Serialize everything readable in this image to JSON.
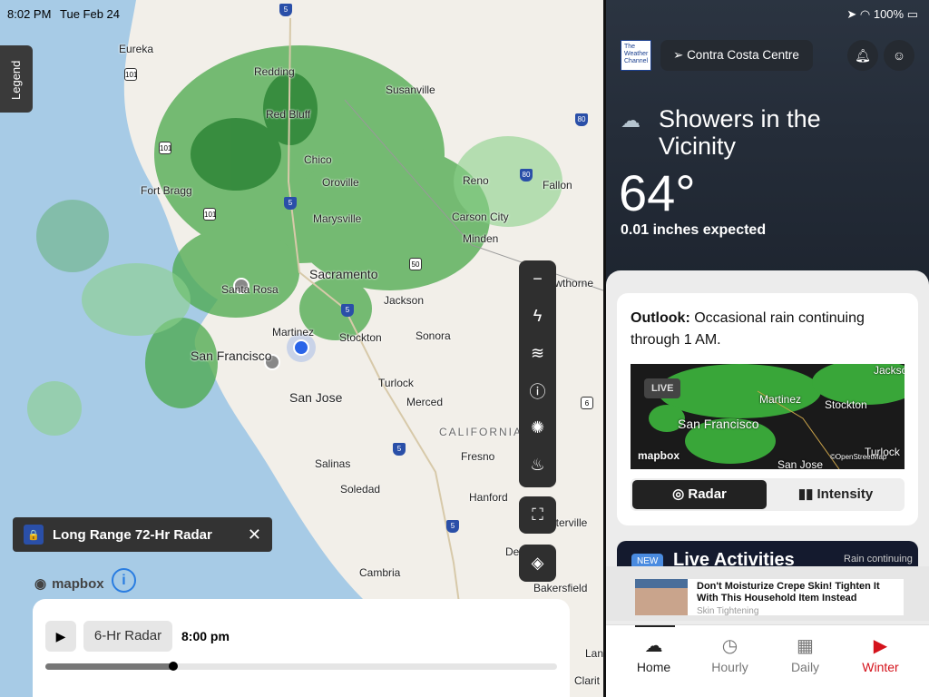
{
  "status_bar": {
    "time": "8:02 PM",
    "date": "Tue Feb 24",
    "battery": "100%"
  },
  "map": {
    "legend_label": "Legend",
    "cities": [
      {
        "name": "Eureka"
      },
      {
        "name": "Redding"
      },
      {
        "name": "Susanville"
      },
      {
        "name": "Red Bluff"
      },
      {
        "name": "Chico"
      },
      {
        "name": "Oroville"
      },
      {
        "name": "Fort Bragg"
      },
      {
        "name": "Marysville"
      },
      {
        "name": "Reno"
      },
      {
        "name": "Fallon"
      },
      {
        "name": "Carson City"
      },
      {
        "name": "Minden"
      },
      {
        "name": "Sacramento"
      },
      {
        "name": "Santa Rosa"
      },
      {
        "name": "Hawthorne"
      },
      {
        "name": "Jackson"
      },
      {
        "name": "Martinez"
      },
      {
        "name": "Stockton"
      },
      {
        "name": "Sonora"
      },
      {
        "name": "San Francisco"
      },
      {
        "name": "Turlock"
      },
      {
        "name": "San Jose"
      },
      {
        "name": "Merced"
      },
      {
        "name": "CALIFORNIA"
      },
      {
        "name": "Fresno"
      },
      {
        "name": "Salinas"
      },
      {
        "name": "Soledad"
      },
      {
        "name": "Hanford"
      },
      {
        "name": "Porterville"
      },
      {
        "name": "Delano"
      },
      {
        "name": "Cambria"
      },
      {
        "name": "Bakersfield"
      },
      {
        "name": "Lan"
      },
      {
        "name": "Clarit"
      }
    ],
    "highways": [
      "5",
      "101",
      "101",
      "101",
      "5",
      "80",
      "80",
      "50",
      "5",
      "5",
      "5",
      "6"
    ],
    "layer_chip": "Long Range 72-Hr Radar",
    "attribution": "mapbox",
    "player": {
      "radar_type": "6-Hr Radar",
      "time": "8:00 pm",
      "progress": 0.25
    }
  },
  "side": {
    "brand": "The Weather Channel",
    "location": "Contra Costa Centre",
    "condition": "Showers in the Vicinity",
    "temperature": "64°",
    "precip": "0.01 inches expected",
    "outlook_label": "Outlook:",
    "outlook_text": "Occasional rain continuing through 1 AM.",
    "mini_map": {
      "live": "LIVE",
      "labels": [
        "Martinez",
        "Stockton",
        "San Francisco",
        "San Jose",
        "Turlock",
        "Jackson"
      ],
      "attribution": "mapbox",
      "osm": "©OpenStreetMap"
    },
    "segments": {
      "radar": "Radar",
      "intensity": "Intensity"
    },
    "live_activities": {
      "badge": "NEW",
      "title": "Live Activities",
      "rain": "Rain continuing"
    },
    "ad": {
      "title": "Don't Moisturize Crepe Skin! Tighten It With This Household Item Instead",
      "sponsor": "Skin Tightening"
    },
    "tabs": [
      {
        "label": "Home"
      },
      {
        "label": "Hourly"
      },
      {
        "label": "Daily"
      },
      {
        "label": "Winter"
      }
    ],
    "accent": "#d4121b"
  }
}
